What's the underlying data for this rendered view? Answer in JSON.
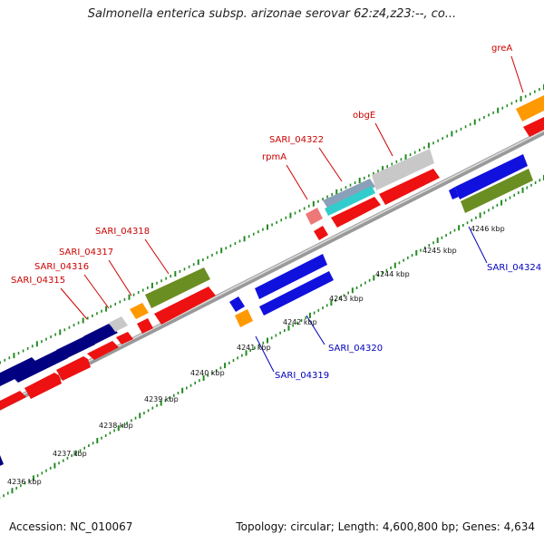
{
  "title": "Salmonella enterica subsp. arizonae serovar 62:z4,z23:--, co...",
  "footer": {
    "accession": "Accession: NC_010067",
    "summary": "Topology: circular; Length: 4,600,800 bp; Genes: 4,634"
  },
  "colors": {
    "forward_cds": "#ee1111",
    "reverse_cds": "#1111dd",
    "pseudo_gray": "#c8c8c8",
    "olive": "#6b8e23",
    "navy": "#000080",
    "orange": "#ff9900",
    "pink": "#ee7777",
    "cyan": "#33cccc",
    "backbone": "#999999",
    "tick_green": "#228b22"
  },
  "kbp_labels": [
    "4236 kbp",
    "4237 kbp",
    "4238 kbp",
    "4239 kbp",
    "4240 kbp",
    "4241 kbp",
    "4242 kbp",
    "4243 kbp",
    "4244 kbp",
    "4245 kbp",
    "4246 kbp"
  ],
  "forward_labels": [
    "greA",
    "obgE",
    "SARI_04322",
    "rpmA",
    "SARI_04318",
    "SARI_04317",
    "SARI_04316",
    "SARI_04315"
  ],
  "reverse_labels": [
    "SARI_04324",
    "SARI_04320",
    "SARI_04319"
  ]
}
